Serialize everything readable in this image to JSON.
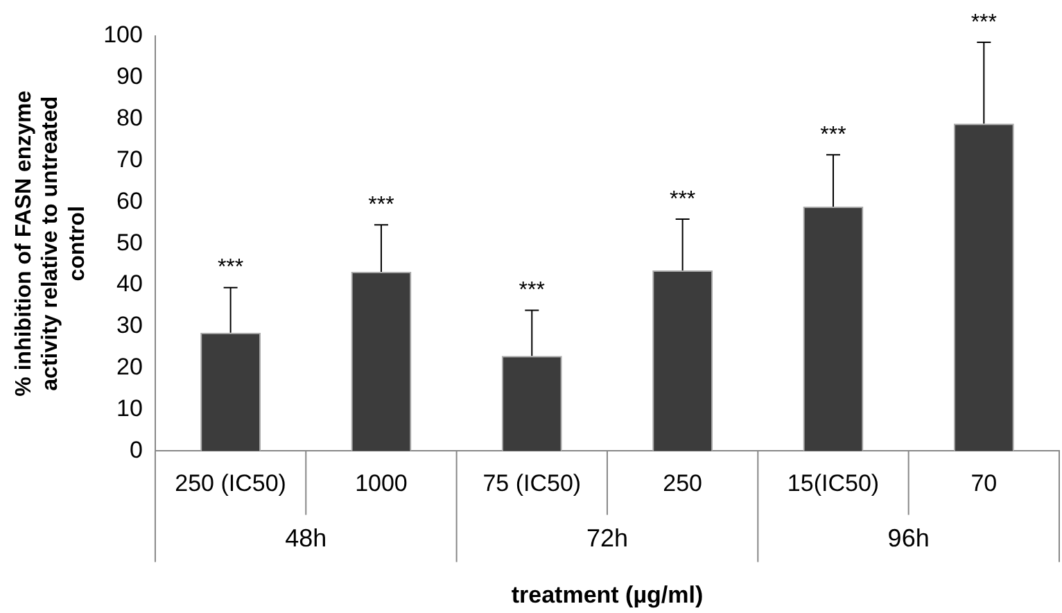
{
  "chart_data": {
    "type": "bar",
    "xlabel": "treatment (µg/ml)",
    "ylabel": "% inhibition of FASN enzyme activity relative to untreated control",
    "categories": [
      "250 (IC50)",
      "1000",
      "75 (IC50)",
      "250",
      "15(IC50)",
      "70"
    ],
    "values": [
      28.5,
      43.2,
      22.9,
      43.5,
      58.9,
      78.9
    ],
    "errors": [
      [
        28.5,
        39.4
      ],
      [
        43.2,
        54.5
      ],
      [
        22.9,
        33.9
      ],
      [
        43.5,
        55.9
      ],
      [
        58.9,
        71.4
      ],
      [
        78.9,
        98.5
      ]
    ],
    "color": "#3c3c3c",
    "ylim": [
      0,
      100
    ],
    "yticks": [
      0,
      10,
      20,
      30,
      40,
      50,
      60,
      70,
      80,
      90,
      100
    ],
    "grid": false,
    "legend": false,
    "annotations": [
      {
        "text": "***",
        "x": "250 (IC50)",
        "y": 39.4
      },
      {
        "text": "***",
        "x": "1000",
        "y": 54.5
      },
      {
        "text": "***",
        "x": "75 (IC50)",
        "y": 33.9
      },
      {
        "text": "***",
        "x": "250",
        "y": 55.9
      },
      {
        "text": "***",
        "x": "15(IC50)",
        "y": 71.4
      },
      {
        "text": "***",
        "x": "70",
        "y": 98.5
      },
      "48h",
      "72h",
      "96h"
    ]
  }
}
